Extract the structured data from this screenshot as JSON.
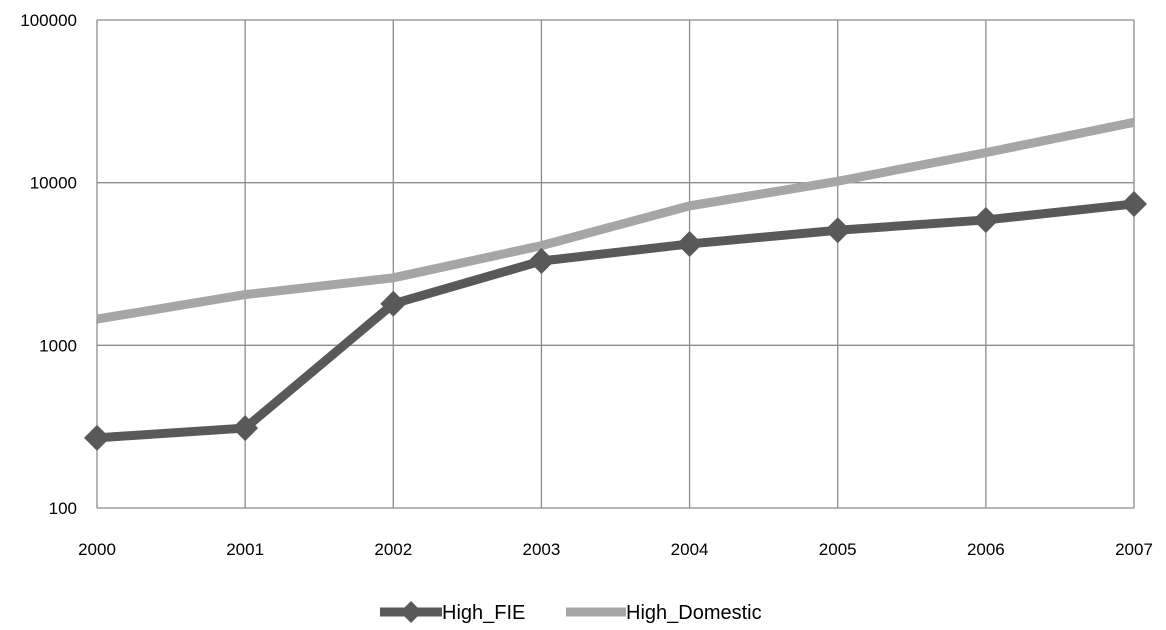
{
  "chart_data": {
    "type": "line",
    "x": [
      2000,
      2001,
      2002,
      2003,
      2004,
      2005,
      2006,
      2007
    ],
    "y_scale": "log",
    "ylim": [
      100,
      100000
    ],
    "yticks": [
      "100",
      "1000",
      "10000",
      "100000"
    ],
    "xticks": [
      "2000",
      "2001",
      "2002",
      "2003",
      "2004",
      "2005",
      "2006",
      "2007"
    ],
    "grid": true,
    "legend_position": "bottom",
    "series": [
      {
        "name": "High_FIE",
        "color": "#595959",
        "marker": "diamond",
        "values": [
          270,
          310,
          1800,
          3300,
          4200,
          5100,
          5900,
          7400
        ]
      },
      {
        "name": "High_Domestic",
        "color": "#a6a6a6",
        "marker": "none",
        "values": [
          1450,
          2050,
          2600,
          4100,
          7200,
          10200,
          15300,
          23500
        ]
      }
    ]
  }
}
